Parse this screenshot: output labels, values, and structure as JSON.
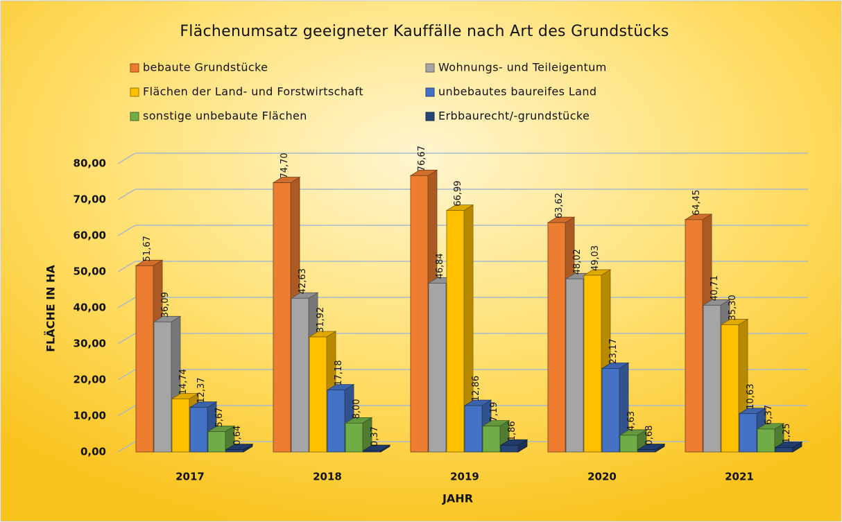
{
  "chart_data": {
    "type": "bar",
    "title": "Flächenumsatz geeigneter Kauffälle nach Art des Grundstücks",
    "x_label": "JAHR",
    "y_label": "FLÄCHE IN HA",
    "categories": [
      "2017",
      "2018",
      "2019",
      "2020",
      "2021"
    ],
    "series": [
      {
        "name": "bebaute Grundstücke",
        "color": "#ed7d31",
        "values": [
          51.67,
          74.7,
          76.67,
          63.62,
          64.45
        ],
        "value_labels": [
          "51,67",
          "74,70",
          "76,67",
          "63,62",
          "64,45"
        ]
      },
      {
        "name": "Wohnungs- und Teileigentum",
        "color": "#a5a5a5",
        "values": [
          36.09,
          42.63,
          46.84,
          48.02,
          40.71
        ],
        "value_labels": [
          "36,09",
          "42,63",
          "46,84",
          "48,02",
          "40,71"
        ]
      },
      {
        "name": "Flächen der Land- und Forstwirtschaft",
        "color": "#ffc000",
        "values": [
          14.74,
          31.92,
          66.99,
          49.03,
          35.3
        ],
        "value_labels": [
          "14,74",
          "31,92",
          "66,99",
          "49,03",
          "35,30"
        ]
      },
      {
        "name": "unbebautes baureifes Land",
        "color": "#4472c4",
        "values": [
          12.37,
          17.18,
          12.86,
          23.17,
          10.63
        ],
        "value_labels": [
          "12,37",
          "17,18",
          "12,86",
          "23,17",
          "10,63"
        ]
      },
      {
        "name": "sonstige unbebaute Flächen",
        "color": "#70ad47",
        "values": [
          5.67,
          8.0,
          7.19,
          4.63,
          6.37
        ],
        "value_labels": [
          "5,67",
          "8,00",
          "7,19",
          "4,63",
          "6,37"
        ]
      },
      {
        "name": "Erbbaurecht/-grundstücke",
        "color": "#264478",
        "values": [
          0.64,
          0.37,
          1.86,
          0.68,
          1.25
        ],
        "value_labels": [
          "0,64",
          "0,37",
          "1,86",
          "0,68",
          "1,25"
        ]
      }
    ],
    "ylim": [
      0,
      80
    ],
    "yticks": [
      {
        "value": 0,
        "label": "0,00"
      },
      {
        "value": 10,
        "label": "10,00"
      },
      {
        "value": 20,
        "label": "20,00"
      },
      {
        "value": 30,
        "label": "30,00"
      },
      {
        "value": 40,
        "label": "40,00"
      },
      {
        "value": 50,
        "label": "50,00"
      },
      {
        "value": 60,
        "label": "60,00"
      },
      {
        "value": 70,
        "label": "70,00"
      },
      {
        "value": 80,
        "label": "80,00"
      }
    ],
    "grid": true
  }
}
